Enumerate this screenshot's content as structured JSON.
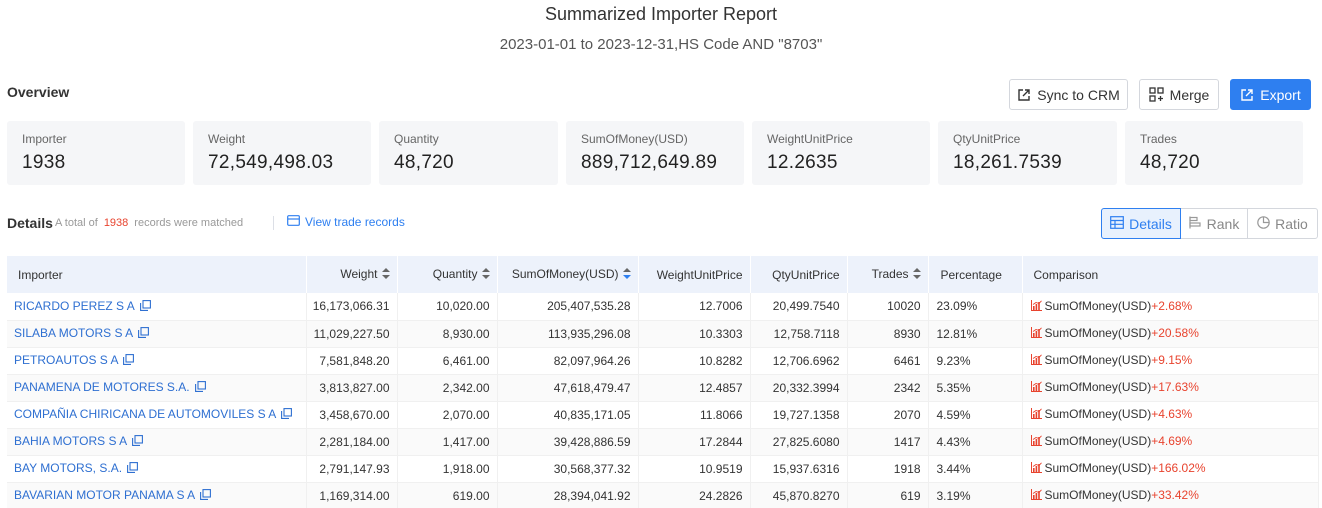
{
  "report": {
    "title": "Summarized Importer Report",
    "subtitle": "2023-01-01 to 2023-12-31,HS Code AND \"8703\""
  },
  "overview": {
    "label": "Overview",
    "buttons": {
      "sync": "Sync to CRM",
      "merge": "Merge",
      "export": "Export"
    },
    "stats": [
      {
        "label": "Importer",
        "value": "1938"
      },
      {
        "label": "Weight",
        "value": "72,549,498.03"
      },
      {
        "label": "Quantity",
        "value": "48,720"
      },
      {
        "label": "SumOfMoney(USD)",
        "value": "889,712,649.89"
      },
      {
        "label": "WeightUnitPrice",
        "value": "12.2635"
      },
      {
        "label": "QtyUnitPrice",
        "value": "18,261.7539"
      },
      {
        "label": "Trades",
        "value": "48,720"
      }
    ]
  },
  "details": {
    "label": "Details",
    "matched_prefix": "A total of",
    "matched_count": "1938",
    "matched_suffix": "records were matched",
    "view_link": "View trade records",
    "views": {
      "details": "Details",
      "rank": "Rank",
      "ratio": "Ratio"
    }
  },
  "table": {
    "headers": [
      "Importer",
      "Weight",
      "Quantity",
      "SumOfMoney(USD)",
      "WeightUnitPrice",
      "QtyUnitPrice",
      "Trades",
      "Percentage",
      "Comparison"
    ],
    "rows": [
      {
        "importer": "RICARDO PEREZ S A",
        "weight": "16,173,066.31",
        "quantity": "10,020.00",
        "sum": "205,407,535.28",
        "wup": "12.7006",
        "qup": "20,499.7540",
        "trades": "10020",
        "pct": "23.09%",
        "cmp_label": "SumOfMoney(USD)",
        "cmp_val": "+2.68%"
      },
      {
        "importer": "SILABA MOTORS S A",
        "weight": "11,029,227.50",
        "quantity": "8,930.00",
        "sum": "113,935,296.08",
        "wup": "10.3303",
        "qup": "12,758.7118",
        "trades": "8930",
        "pct": "12.81%",
        "cmp_label": "SumOfMoney(USD)",
        "cmp_val": "+20.58%"
      },
      {
        "importer": "PETROAUTOS S A",
        "weight": "7,581,848.20",
        "quantity": "6,461.00",
        "sum": "82,097,964.26",
        "wup": "10.8282",
        "qup": "12,706.6962",
        "trades": "6461",
        "pct": "9.23%",
        "cmp_label": "SumOfMoney(USD)",
        "cmp_val": "+9.15%"
      },
      {
        "importer": "PANAMENA DE MOTORES S.A.",
        "weight": "3,813,827.00",
        "quantity": "2,342.00",
        "sum": "47,618,479.47",
        "wup": "12.4857",
        "qup": "20,332.3994",
        "trades": "2342",
        "pct": "5.35%",
        "cmp_label": "SumOfMoney(USD)",
        "cmp_val": "+17.63%"
      },
      {
        "importer": "COMPAÑIA CHIRICANA DE AUTOMOVILES S A",
        "weight": "3,458,670.00",
        "quantity": "2,070.00",
        "sum": "40,835,171.05",
        "wup": "11.8066",
        "qup": "19,727.1358",
        "trades": "2070",
        "pct": "4.59%",
        "cmp_label": "SumOfMoney(USD)",
        "cmp_val": "+4.63%"
      },
      {
        "importer": "BAHIA MOTORS S A",
        "weight": "2,281,184.00",
        "quantity": "1,417.00",
        "sum": "39,428,886.59",
        "wup": "17.2844",
        "qup": "27,825.6080",
        "trades": "1417",
        "pct": "4.43%",
        "cmp_label": "SumOfMoney(USD)",
        "cmp_val": "+4.69%"
      },
      {
        "importer": "BAY MOTORS, S.A.",
        "weight": "2,791,147.93",
        "quantity": "1,918.00",
        "sum": "30,568,377.32",
        "wup": "10.9519",
        "qup": "15,937.6316",
        "trades": "1918",
        "pct": "3.44%",
        "cmp_label": "SumOfMoney(USD)",
        "cmp_val": "+166.02%"
      },
      {
        "importer": "BAVARIAN MOTOR PANAMA S A",
        "weight": "1,169,314.00",
        "quantity": "619.00",
        "sum": "28,394,041.92",
        "wup": "24.2826",
        "qup": "45,870.8270",
        "trades": "619",
        "pct": "3.19%",
        "cmp_label": "SumOfMoney(USD)",
        "cmp_val": "+33.42%"
      }
    ]
  },
  "colors": {
    "accent": "#2e7ff0",
    "positive_change": "#e8432e",
    "stat_bg": "#f5f6f8",
    "header_bg": "#edf2fb"
  },
  "icons": {
    "copy": "copy-icon",
    "sort": "sort-icon",
    "chart": "bar-chart-icon"
  }
}
